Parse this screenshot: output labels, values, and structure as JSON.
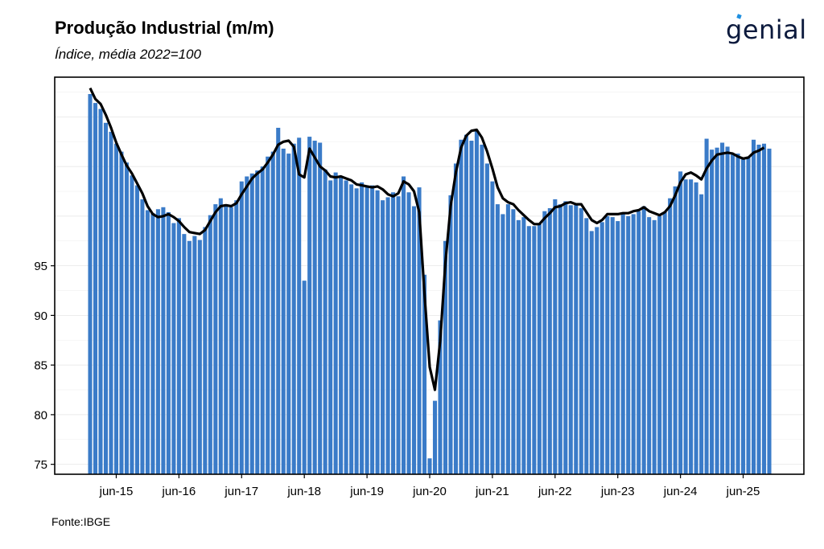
{
  "title": "Produção Industrial (m/m)",
  "subtitle": "Índice, média 2022=100",
  "logo": "genial",
  "source": "Fonte:IBGE",
  "colors": {
    "bar": "#3a7bc8",
    "line": "#000000",
    "grid": "#ebebeb"
  },
  "chart_data": {
    "type": "bar",
    "y_ticks": [
      75,
      80,
      85,
      90,
      95
    ],
    "ylim": [
      74,
      114
    ],
    "x_ticks": [
      "jun-15",
      "jun-16",
      "jun-17",
      "jun-18",
      "jun-19",
      "jun-20",
      "jun-21",
      "jun-22",
      "jun-23",
      "jun-24",
      "jun-25"
    ],
    "start_period": "jan-15",
    "grid": true,
    "series": [
      {
        "type": "bar",
        "values": [
          112.3,
          111.4,
          110.8,
          109.4,
          108.5,
          107.3,
          106.5,
          105.4,
          104.1,
          103.1,
          101.7,
          100.6,
          100.3,
          100.7,
          100.9,
          100.4,
          99.3,
          99.8,
          98.2,
          97.5,
          98.0,
          97.6,
          98.9,
          100.1,
          101.2,
          101.8,
          101.2,
          100.9,
          101.6,
          103.5,
          104.0,
          104.3,
          104.6,
          105.0,
          106.0,
          106.5,
          108.9,
          106.8,
          106.3,
          107.3,
          107.9,
          93.5,
          108.0,
          107.6,
          107.4,
          104.7,
          103.6,
          104.4,
          103.9,
          103.6,
          103.2,
          102.8,
          103.4,
          103.0,
          103.1,
          102.6,
          101.6,
          101.9,
          102.4,
          102.0,
          104.0,
          102.4,
          101.0,
          102.9,
          94.1,
          75.6,
          81.4,
          89.5,
          97.5,
          102.1,
          105.3,
          107.7,
          108.2,
          107.6,
          108.6,
          107.2,
          105.3,
          103.5,
          101.2,
          100.2,
          101.2,
          100.7,
          99.6,
          99.9,
          99.0,
          99.0,
          99.2,
          100.5,
          100.8,
          101.7,
          101.2,
          101.5,
          101.1,
          101.3,
          100.8,
          99.8,
          98.5,
          98.9,
          99.4,
          100.0,
          99.9,
          99.5,
          100.2,
          100.0,
          100.2,
          100.5,
          101.0,
          99.9,
          99.6,
          100.0,
          100.4,
          101.8,
          103.0,
          104.5,
          103.7,
          103.7,
          103.4,
          102.2,
          107.8,
          106.7,
          106.9,
          107.4,
          107.0,
          106.2,
          106.3,
          105.8,
          106.0,
          107.7,
          107.2,
          107.3,
          106.8
        ]
      },
      {
        "type": "line",
        "values": [
          112.9,
          111.8,
          111.3,
          110.2,
          108.9,
          107.4,
          106.2,
          105.1,
          104.3,
          103.3,
          102.3,
          101.0,
          100.2,
          99.9,
          100.0,
          100.2,
          99.9,
          99.5,
          98.9,
          98.4,
          98.3,
          98.2,
          98.6,
          99.5,
          100.4,
          101.0,
          101.1,
          101.0,
          101.3,
          102.2,
          103.0,
          103.8,
          104.3,
          104.7,
          105.4,
          106.2,
          107.2,
          107.5,
          107.6,
          107.0,
          104.2,
          103.9,
          106.8,
          105.9,
          105.0,
          104.6,
          104.0,
          103.9,
          104.0,
          103.8,
          103.6,
          103.2,
          103.1,
          103.0,
          102.9,
          103.0,
          102.7,
          102.2,
          102.0,
          102.3,
          103.5,
          103.2,
          102.5,
          100.4,
          92.2,
          84.8,
          82.5,
          87.4,
          95.3,
          101.0,
          104.4,
          106.9,
          108.1,
          108.6,
          108.7,
          107.9,
          106.5,
          104.8,
          102.9,
          101.8,
          101.4,
          101.2,
          100.6,
          100.1,
          99.6,
          99.2,
          99.2,
          99.8,
          100.3,
          100.9,
          101.0,
          101.3,
          101.4,
          101.2,
          101.2,
          100.4,
          99.6,
          99.3,
          99.6,
          100.2,
          100.2,
          100.2,
          100.3,
          100.3,
          100.5,
          100.6,
          100.9,
          100.5,
          100.3,
          100.1,
          100.4,
          101.0,
          102.1,
          103.4,
          104.2,
          104.4,
          104.1,
          103.7,
          104.8,
          105.6,
          106.2,
          106.3,
          106.4,
          106.3,
          106.0,
          105.8,
          105.9,
          106.4,
          106.6,
          106.9
        ]
      }
    ]
  }
}
